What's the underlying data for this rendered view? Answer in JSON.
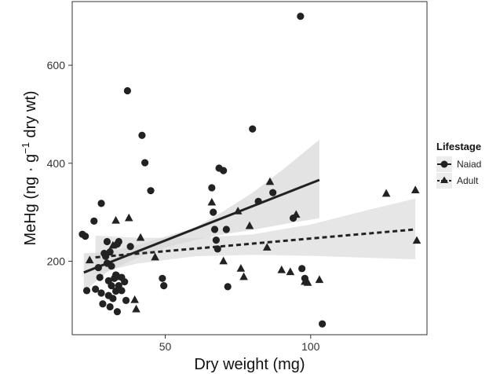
{
  "chart_data": {
    "type": "scatter",
    "title": "",
    "xlabel": "Dry weight (mg)",
    "ylabel_main": "MeHg (ng · g",
    "ylabel_sup": "−1",
    "ylabel_tail": " dry wt)",
    "xlim": [
      18,
      140
    ],
    "ylim": [
      50,
      730
    ],
    "xticks": [
      50,
      100
    ],
    "yticks": [
      200,
      400,
      600
    ],
    "grid": false,
    "legend_position": "right",
    "legend_title": "Lifestage",
    "colors": {
      "points": "#222222",
      "band": "#d9d9d9",
      "line": "#222222",
      "panel_border": "#333333"
    },
    "series": [
      {
        "name": "Naiad",
        "marker": "circle",
        "line_style": "solid",
        "fit": {
          "x": [
            22,
            103
          ],
          "y": [
            177,
            366
          ]
        },
        "ci_band": {
          "x": [
            22,
            30,
            40,
            50,
            60,
            70,
            80,
            90,
            103
          ],
          "lower": [
            138,
            178,
            206,
            228,
            243,
            255,
            264,
            275,
            288
          ],
          "upper": [
            216,
            219,
            232,
            250,
            268,
            302,
            340,
            385,
            448
          ]
        },
        "points": [
          [
            21.5,
            255
          ],
          [
            22.5,
            251
          ],
          [
            23,
            140
          ],
          [
            25.5,
            282
          ],
          [
            26,
            143
          ],
          [
            27,
            187
          ],
          [
            27.5,
            167
          ],
          [
            28,
            318
          ],
          [
            28,
            135
          ],
          [
            28.5,
            113
          ],
          [
            29,
            216
          ],
          [
            29.5,
            210
          ],
          [
            30,
            240
          ],
          [
            30,
            196
          ],
          [
            30.5,
            160
          ],
          [
            30.5,
            130
          ],
          [
            31,
            219
          ],
          [
            31,
            107
          ],
          [
            31.5,
            190
          ],
          [
            31.5,
            150
          ],
          [
            32,
            124
          ],
          [
            32.5,
            165
          ],
          [
            33,
            172
          ],
          [
            33,
            139
          ],
          [
            33.5,
            235
          ],
          [
            33.5,
            97
          ],
          [
            34,
            240
          ],
          [
            34,
            150
          ],
          [
            35,
            167
          ],
          [
            35,
            140
          ],
          [
            36,
            158
          ],
          [
            36.5,
            120
          ],
          [
            37,
            548
          ],
          [
            38,
            230
          ],
          [
            42,
            457
          ],
          [
            43,
            401
          ],
          [
            45,
            344
          ],
          [
            49,
            165
          ],
          [
            49.5,
            150
          ],
          [
            66,
            350
          ],
          [
            66.5,
            300
          ],
          [
            67,
            265
          ],
          [
            67.5,
            243
          ],
          [
            68,
            225
          ],
          [
            68.5,
            390
          ],
          [
            70,
            385
          ],
          [
            71,
            265
          ],
          [
            71.5,
            148
          ],
          [
            80,
            470
          ],
          [
            82,
            322
          ],
          [
            87,
            340
          ],
          [
            94,
            288
          ],
          [
            96.5,
            700
          ],
          [
            97,
            185
          ],
          [
            98,
            165
          ],
          [
            104,
            72
          ]
        ]
      },
      {
        "name": "Adult",
        "marker": "triangle",
        "line_style": "dashed",
        "fit": {
          "x": [
            26,
            136
          ],
          "y": [
            208,
            265
          ]
        },
        "ci_band": {
          "x": [
            26,
            40,
            60,
            80,
            100,
            120,
            136
          ],
          "lower": [
            175,
            195,
            210,
            213,
            211,
            207,
            204
          ],
          "upper": [
            252,
            248,
            247,
            255,
            275,
            305,
            328
          ]
        },
        "points": [
          [
            24,
            202
          ],
          [
            32,
            232
          ],
          [
            33,
            283
          ],
          [
            34,
            168
          ],
          [
            37.5,
            288
          ],
          [
            39.5,
            121
          ],
          [
            40,
            102
          ],
          [
            41.5,
            248
          ],
          [
            46.5,
            208
          ],
          [
            66,
            320
          ],
          [
            70,
            200
          ],
          [
            75,
            302
          ],
          [
            76,
            185
          ],
          [
            77,
            168
          ],
          [
            79,
            272
          ],
          [
            85,
            228
          ],
          [
            86,
            362
          ],
          [
            90,
            182
          ],
          [
            93,
            178
          ],
          [
            95,
            295
          ],
          [
            98,
            158
          ],
          [
            99,
            156
          ],
          [
            103,
            162
          ],
          [
            126,
            338
          ],
          [
            136,
            345
          ],
          [
            136.5,
            242
          ]
        ]
      }
    ]
  }
}
